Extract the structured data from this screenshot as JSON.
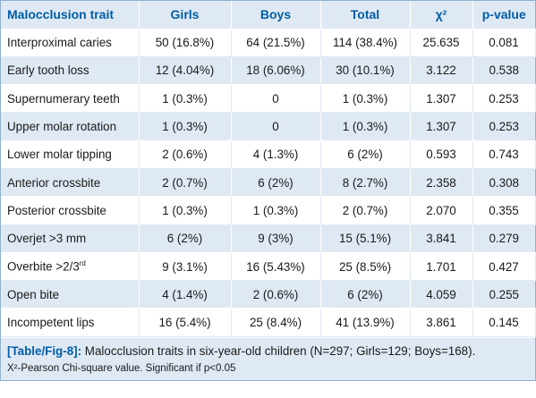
{
  "table": {
    "headers": [
      "Malocclusion trait",
      "Girls",
      "Boys",
      "Total",
      "χ²",
      "p-value"
    ],
    "rows": [
      [
        "Interproximal caries",
        "50 (16.8%)",
        "64 (21.5%)",
        "114 (38.4%)",
        "25.635",
        "0.081"
      ],
      [
        "Early tooth loss",
        "12 (4.04%)",
        "18 (6.06%)",
        "30 (10.1%)",
        "3.122",
        "0.538"
      ],
      [
        "Supernumerary teeth",
        "1 (0.3%)",
        "0",
        "1 (0.3%)",
        "1.307",
        "0.253"
      ],
      [
        "Upper molar rotation",
        "1 (0.3%)",
        "0",
        "1 (0.3%)",
        "1.307",
        "0.253"
      ],
      [
        "Lower molar tipping",
        "2 (0.6%)",
        "4 (1.3%)",
        "6 (2%)",
        "0.593",
        "0.743"
      ],
      [
        "Anterior crossbite",
        "2 (0.7%)",
        "6 (2%)",
        "8 (2.7%)",
        "2.358",
        "0.308"
      ],
      [
        "Posterior crossbite",
        "1 (0.3%)",
        "1 (0.3%)",
        "2 (0.7%)",
        "2.070",
        "0.355"
      ],
      [
        "Overjet >3 mm",
        "6 (2%)",
        "9 (3%)",
        "15 (5.1%)",
        "3.841",
        "0.279"
      ],
      [
        "Overbite >2/3rd",
        "9 (3.1%)",
        "16 (5.43%)",
        "25 (8.5%)",
        "1.701",
        "0.427"
      ],
      [
        "Open bite",
        "4 (1.4%)",
        "2 (0.6%)",
        "6 (2%)",
        "4.059",
        "0.255"
      ],
      [
        "Incompetent lips",
        "16 (5.4%)",
        "25 (8.4%)",
        "41 (13.9%)",
        "3.861",
        "0.145"
      ]
    ]
  },
  "caption": {
    "ref": "[Table/Fig-8]:",
    "text": " Malocclusion traits in six-year-old children (N=297; Girls=129; Boys=168).",
    "footnote": "X²-Pearson Chi-square value. Significant if p<0.05"
  },
  "colors": {
    "header_text": "#005da8",
    "band_blue": "#dfe9f4",
    "band_white": "#ffffff"
  }
}
